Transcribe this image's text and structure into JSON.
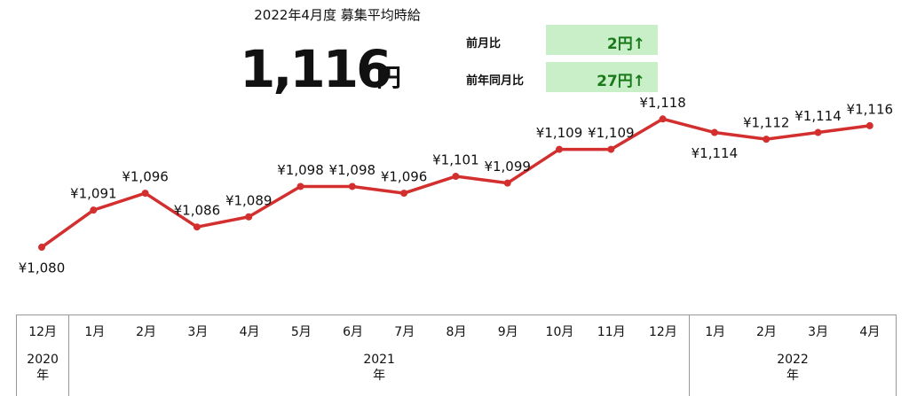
{
  "header": {
    "title": "2022年4月度 募集平均時給",
    "value": "1,116",
    "unit": "円"
  },
  "comparisons": [
    {
      "label": "前月比",
      "value": "2円↑"
    },
    {
      "label": "前年同月比",
      "value": "27円↑"
    }
  ],
  "chart_data": {
    "type": "line",
    "color": "#d32f2f",
    "groups": [
      {
        "label": "2020年",
        "categories": [
          "12月"
        ]
      },
      {
        "label": "2021年",
        "categories": [
          "1月",
          "2月",
          "3月",
          "4月",
          "5月",
          "6月",
          "7月",
          "8月",
          "9月",
          "10月",
          "11月",
          "12月"
        ]
      },
      {
        "label": "2022年",
        "categories": [
          "1月",
          "2月",
          "3月",
          "4月"
        ]
      }
    ],
    "values": [
      1080,
      1091,
      1096,
      1086,
      1089,
      1098,
      1098,
      1096,
      1101,
      1099,
      1109,
      1109,
      1118,
      1114,
      1112,
      1114,
      1116
    ],
    "value_labels": [
      "¥1,080",
      "¥1,091",
      "¥1,096",
      "¥1,086",
      "¥1,089",
      "¥1,098",
      "¥1,098",
      "¥1,096",
      "¥1,101",
      "¥1,099",
      "¥1,109",
      "¥1,109",
      "¥1,118",
      "¥1,114",
      "¥1,112",
      "¥1,114",
      "¥1,116"
    ],
    "ylim": [
      1064,
      1127
    ]
  }
}
